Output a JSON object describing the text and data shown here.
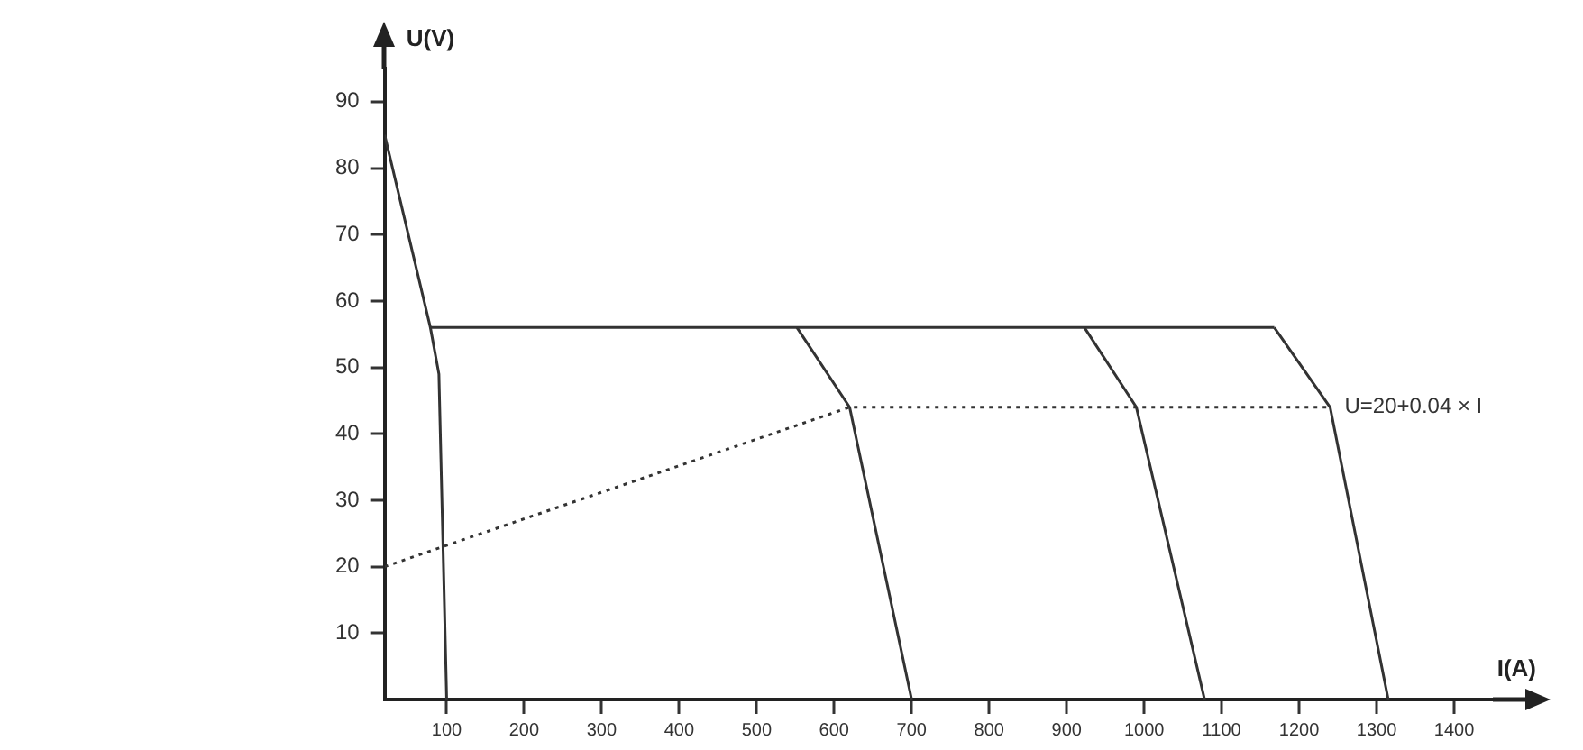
{
  "chart_data": {
    "type": "line",
    "xlabel": "I(A)",
    "ylabel": "U(V)",
    "xlim": [
      20,
      1450
    ],
    "xticks": [
      100,
      200,
      300,
      400,
      500,
      600,
      700,
      800,
      900,
      1000,
      1100,
      1200,
      1300,
      1400
    ],
    "ylim": [
      0,
      95
    ],
    "yticks": [
      10,
      20,
      30,
      40,
      50,
      60,
      70,
      80,
      90
    ],
    "grid": false,
    "legend": false,
    "marker": "none",
    "series": [
      {
        "color": "#333333",
        "x": [
          20,
          79,
          90,
          100
        ],
        "values": [
          85,
          56,
          49,
          0
        ]
      },
      {
        "color": "#333333",
        "x": [
          79,
          1168
        ],
        "values": [
          56,
          56
        ]
      },
      {
        "color": "#333333",
        "x": [
          552,
          620,
          700
        ],
        "values": [
          56,
          44,
          0
        ]
      },
      {
        "color": "#333333",
        "x": [
          923,
          990,
          1078
        ],
        "values": [
          56,
          44,
          0
        ]
      },
      {
        "color": "#333333",
        "x": [
          1168,
          1240,
          1315
        ],
        "values": [
          56,
          44,
          0
        ]
      },
      {
        "color": "#333333",
        "x": [
          20,
          620,
          1240
        ],
        "values": [
          20,
          44,
          44
        ],
        "line_style": "dotted"
      }
    ],
    "annotations": [
      {
        "text": "U=20+0.04 × I",
        "x": 1240,
        "y": 44
      }
    ]
  }
}
